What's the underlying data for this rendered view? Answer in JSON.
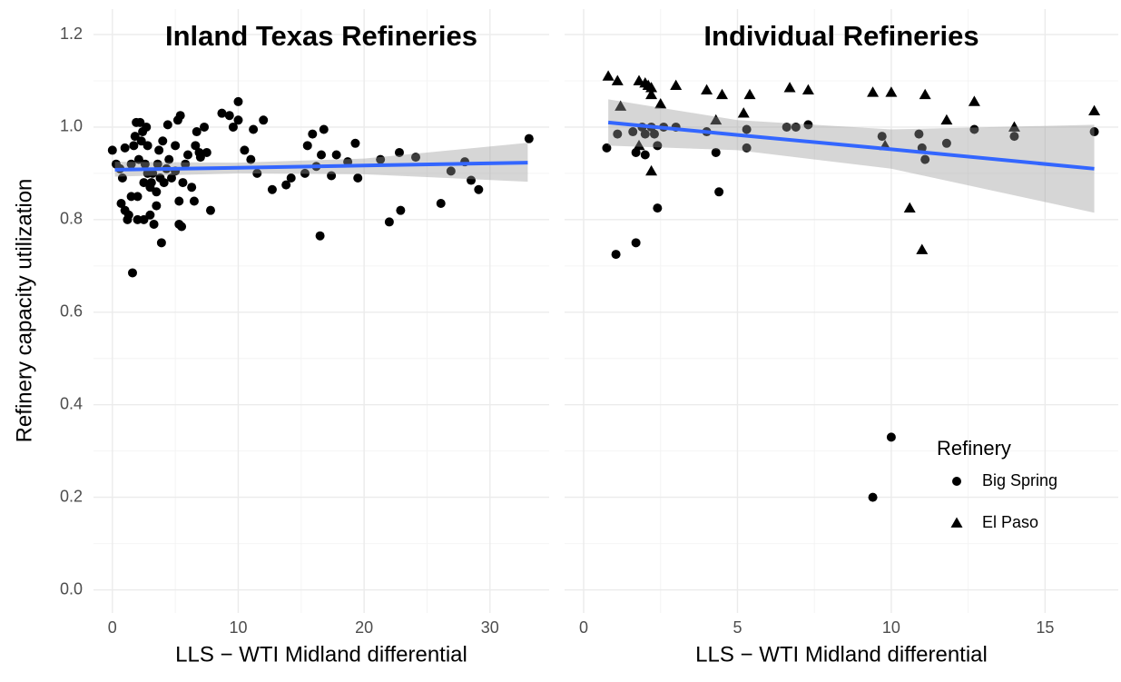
{
  "chart_data": [
    {
      "type": "scatter",
      "title": "Inland Texas Refineries",
      "x_label": "LLS − WTI Midland differential",
      "y_label": "Refinery capacity utilization",
      "xlim": [
        -1.5,
        34.7
      ],
      "ylim": [
        -0.05,
        1.255
      ],
      "xticks": [
        0,
        10,
        20,
        30
      ],
      "yticks": [
        {
          "value": 0,
          "label": "0.0"
        },
        0.2,
        0.4,
        0.6,
        0.8,
        {
          "value": 1,
          "label": "1.0"
        },
        1.2
      ],
      "grid": true,
      "series": [
        {
          "color": "#000000",
          "marker": "circle",
          "x": [
            0,
            0.3,
            0.6,
            0.7,
            0.8,
            1,
            1,
            1.2,
            1.3,
            1.5,
            1.5,
            1.6,
            1.7,
            1.8,
            1.9,
            2,
            2,
            2.1,
            2.2,
            2.3,
            2.4,
            2.5,
            2.5,
            2.6,
            2.7,
            2.8,
            2.8,
            3,
            3,
            3.1,
            3.2,
            3.3,
            3.5,
            3.5,
            3.6,
            3.7,
            3.8,
            3.9,
            4,
            4.1,
            4.3,
            4.4,
            4.5,
            4.7,
            5,
            5,
            5.2,
            5.3,
            5.3,
            5.4,
            5.5,
            5.6,
            5.8,
            6,
            6.3,
            6.5,
            6.6,
            6.7,
            6.9,
            7,
            7.3,
            7.5,
            7.8,
            8.7,
            9.3,
            9.6,
            10,
            10,
            10.5,
            11,
            11.2,
            11.5,
            12,
            12.7,
            13.8,
            14.2,
            15.3,
            15.5,
            15.9,
            16.2,
            16.5,
            16.6,
            16.8,
            17.4,
            17.8,
            18.7,
            19.3,
            19.5,
            21.3,
            22,
            22.8,
            22.9,
            24.1,
            26.1,
            26.9,
            28,
            28.5,
            29.1,
            33.1
          ],
          "values": [
            0.95,
            0.92,
            0.91,
            0.835,
            0.89,
            0.955,
            0.82,
            0.8,
            0.81,
            0.85,
            0.92,
            0.685,
            0.96,
            0.98,
            1.01,
            0.85,
            0.8,
            0.93,
            1.01,
            0.97,
            0.99,
            0.88,
            0.8,
            0.92,
            1.0,
            0.96,
            0.9,
            0.87,
            0.81,
            0.88,
            0.9,
            0.79,
            0.83,
            0.86,
            0.92,
            0.95,
            0.89,
            0.75,
            0.97,
            0.88,
            0.91,
            1.005,
            0.93,
            0.89,
            0.96,
            0.905,
            1.015,
            0.79,
            0.84,
            1.025,
            0.785,
            0.88,
            0.92,
            0.94,
            0.87,
            0.84,
            0.96,
            0.99,
            0.945,
            0.935,
            1.0,
            0.945,
            0.82,
            1.03,
            1.025,
            1.0,
            1.055,
            1.015,
            0.95,
            0.93,
            0.995,
            0.9,
            1.015,
            0.865,
            0.875,
            0.89,
            0.9,
            0.96,
            0.985,
            0.915,
            0.765,
            0.94,
            0.995,
            0.895,
            0.94,
            0.925,
            0.965,
            0.89,
            0.93,
            0.795,
            0.945,
            0.82,
            0.935,
            0.835,
            0.905,
            0.925,
            0.885,
            0.865,
            0.975
          ]
        }
      ],
      "fit": {
        "color": "#3366ff",
        "band_color": "#999999",
        "x": [
          0.2,
          10,
          20,
          33
        ],
        "values": [
          0.908,
          0.912,
          0.917,
          0.923
        ],
        "lower": [
          0.893,
          0.9,
          0.898,
          0.882
        ],
        "upper": [
          0.925,
          0.923,
          0.932,
          0.966
        ]
      }
    },
    {
      "type": "scatter",
      "title": "Individual Refineries",
      "x_label": "LLS − WTI Midland differential",
      "xlim": [
        -0.62,
        17.38
      ],
      "ylim": [
        -0.05,
        1.255
      ],
      "xticks": [
        0,
        5,
        10,
        15
      ],
      "grid": true,
      "legend_title": "Refinery",
      "legend": "bottom-right",
      "series": [
        {
          "name": "Big Spring",
          "color": "#000000",
          "marker": "circle",
          "x": [
            0.75,
            1.05,
            1.1,
            1.6,
            1.7,
            1.7,
            1.9,
            2.0,
            2.0,
            2.2,
            2.3,
            2.4,
            2.4,
            2.6,
            3.0,
            4.0,
            4.3,
            4.4,
            5.3,
            5.3,
            6.6,
            6.9,
            7.3,
            9.4,
            9.7,
            10,
            10.9,
            11,
            11.1,
            11.8,
            12.7,
            14,
            16.6
          ],
          "values": [
            0.955,
            0.725,
            0.985,
            0.99,
            0.945,
            0.75,
            1.0,
            0.94,
            0.985,
            1.0,
            0.985,
            0.96,
            0.825,
            1.0,
            1.0,
            0.99,
            0.945,
            0.86,
            0.995,
            0.955,
            1.0,
            1.0,
            1.005,
            0.2,
            0.98,
            0.33,
            0.985,
            0.955,
            0.93,
            0.965,
            0.995,
            0.98,
            0.99
          ]
        },
        {
          "name": "El Paso",
          "color": "#000000",
          "marker": "triangle",
          "x": [
            0.8,
            1.1,
            1.2,
            1.8,
            1.8,
            2.0,
            2.1,
            2.2,
            2.2,
            2.2,
            2.5,
            3.0,
            4.0,
            4.3,
            4.5,
            5.2,
            5.4,
            6.7,
            7.3,
            9.4,
            9.8,
            10,
            10.6,
            11,
            11.1,
            11.8,
            12.7,
            14,
            16.6
          ],
          "values": [
            1.11,
            1.1,
            1.045,
            1.1,
            0.96,
            1.095,
            1.09,
            1.085,
            1.07,
            0.905,
            1.05,
            1.09,
            1.08,
            1.015,
            1.07,
            1.03,
            1.07,
            1.085,
            1.08,
            1.075,
            0.96,
            1.075,
            0.825,
            0.735,
            1.07,
            1.015,
            1.055,
            1.0,
            1.035
          ]
        }
      ],
      "fit": {
        "color": "#3366ff",
        "band_color": "#999999",
        "x": [
          0.8,
          5,
          10,
          16.6
        ],
        "values": [
          1.01,
          0.983,
          0.952,
          0.91
        ],
        "lower": [
          0.96,
          0.95,
          0.91,
          0.815
        ],
        "upper": [
          1.06,
          1.015,
          0.995,
          1.005
        ]
      }
    }
  ]
}
